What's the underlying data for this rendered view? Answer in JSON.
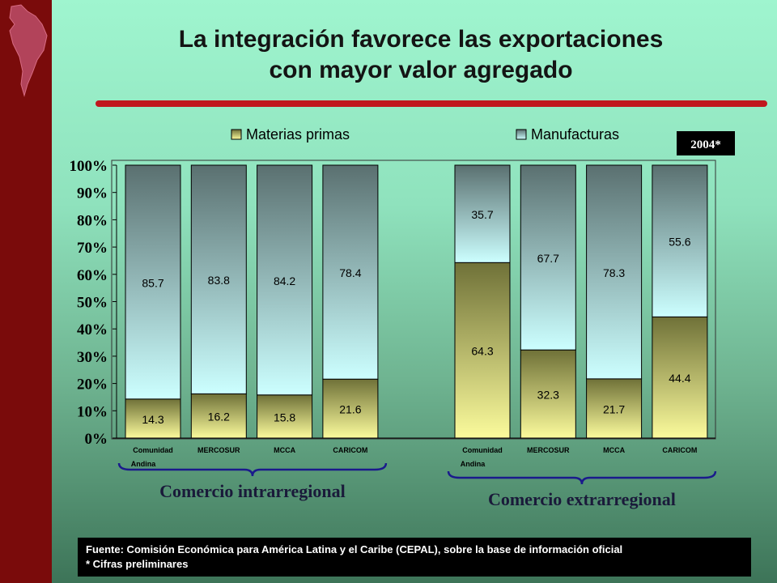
{
  "slide": {
    "title_line1": "La integración favorece las exportaciones",
    "title_line2": "con mayor valor agregado",
    "year_badge": "2004*",
    "footer_line1": "Fuente: Comisión Económica para América Latina y el Caribe (CEPAL), sobre la base de información oficial",
    "footer_line2": "*  Cifras preliminares"
  },
  "colors": {
    "left_bar": "#7a0b0b",
    "title_rule": "#c0181e",
    "materias_primas_top": "#6f7138",
    "materias_primas_bottom": "#fbfb9c",
    "manufacturas_top": "#5a7070",
    "manufacturas_bottom": "#ccffff"
  },
  "chart_data": {
    "type": "bar",
    "stacked": true,
    "percent": true,
    "title": "",
    "xlabel": "",
    "ylabel": "",
    "ylim": [
      0,
      100
    ],
    "yticks": [
      "0%",
      "10%",
      "20%",
      "30%",
      "40%",
      "50%",
      "60%",
      "70%",
      "80%",
      "90%",
      "100%"
    ],
    "legend": [
      "Materias primas",
      "Manufacturas"
    ],
    "groups": [
      {
        "label": "Comercio  intrarregional",
        "categories": [
          {
            "line1": "Comunidad",
            "line2": "Andina"
          },
          {
            "line1": "MERCOSUR",
            "line2": ""
          },
          {
            "line1": "MCCA",
            "line2": ""
          },
          {
            "line1": "CARICOM",
            "line2": ""
          }
        ],
        "series": [
          {
            "name": "Materias primas",
            "values": [
              14.3,
              16.2,
              15.8,
              21.6
            ]
          },
          {
            "name": "Manufacturas",
            "values": [
              85.7,
              83.8,
              84.2,
              78.4
            ]
          }
        ]
      },
      {
        "label": "Comercio  extrarregional",
        "categories": [
          {
            "line1": "Comunidad",
            "line2": "Andina"
          },
          {
            "line1": "MERCOSUR",
            "line2": ""
          },
          {
            "line1": "MCCA",
            "line2": ""
          },
          {
            "line1": "CARICOM",
            "line2": ""
          }
        ],
        "series": [
          {
            "name": "Materias primas",
            "values": [
              64.3,
              32.3,
              21.7,
              44.4
            ]
          },
          {
            "name": "Manufacturas",
            "values": [
              35.7,
              67.7,
              78.3,
              55.6
            ]
          }
        ]
      }
    ]
  }
}
